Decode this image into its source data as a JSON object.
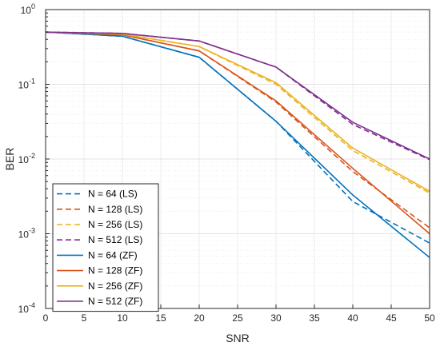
{
  "chart_data": {
    "type": "line",
    "xlabel": "SNR",
    "ylabel": "BER",
    "xlim": [
      0,
      50
    ],
    "ylim": [
      0.0001,
      1
    ],
    "yscale": "log",
    "grid": true,
    "legend_placement": "bottom-left",
    "x": [
      0,
      10,
      20,
      30,
      40,
      50
    ],
    "xticks": [
      "0",
      "5",
      "10",
      "15",
      "20",
      "25",
      "30",
      "35",
      "40",
      "45",
      "50"
    ],
    "yticks": [
      {
        "base": "10",
        "exp": "0"
      },
      {
        "base": "10",
        "exp": "-1"
      },
      {
        "base": "10",
        "exp": "-2"
      },
      {
        "base": "10",
        "exp": "-3"
      },
      {
        "base": "10",
        "exp": "-4"
      }
    ],
    "series": [
      {
        "name": "N = 64 (LS)",
        "style": "dashed",
        "color": "#0072BD",
        "values": [
          0.5,
          0.44,
          0.23,
          0.032,
          0.0027,
          0.00075
        ]
      },
      {
        "name": "N = 128 (LS)",
        "style": "dashed",
        "color": "#D95319",
        "values": [
          0.5,
          0.46,
          0.28,
          0.058,
          0.0068,
          0.0012
        ]
      },
      {
        "name": "N = 256 (LS)",
        "style": "dashed",
        "color": "#EDB120",
        "values": [
          0.5,
          0.47,
          0.32,
          0.1,
          0.013,
          0.0035
        ]
      },
      {
        "name": "N = 512 (LS)",
        "style": "dashed",
        "color": "#7E2F8E",
        "values": [
          0.5,
          0.48,
          0.38,
          0.17,
          0.029,
          0.0098
        ]
      },
      {
        "name": "N = 64 (ZF)",
        "style": "solid",
        "color": "#0072BD",
        "values": [
          0.5,
          0.44,
          0.23,
          0.032,
          0.0033,
          0.00048
        ]
      },
      {
        "name": "N = 128 (ZF)",
        "style": "solid",
        "color": "#D95319",
        "values": [
          0.5,
          0.46,
          0.28,
          0.06,
          0.0075,
          0.001
        ]
      },
      {
        "name": "N = 256 (ZF)",
        "style": "solid",
        "color": "#EDB120",
        "values": [
          0.5,
          0.47,
          0.32,
          0.105,
          0.014,
          0.0037
        ]
      },
      {
        "name": "N = 512 (ZF)",
        "style": "solid",
        "color": "#7E2F8E",
        "values": [
          0.5,
          0.48,
          0.38,
          0.17,
          0.031,
          0.01
        ]
      }
    ]
  }
}
